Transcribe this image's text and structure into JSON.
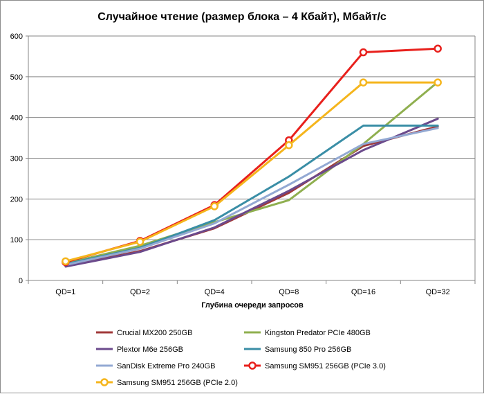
{
  "chart_data": {
    "type": "line",
    "title": "Случайное чтение (размер блока – 4 Кбайт), Мбайт/с",
    "xlabel": "Глубина очереди запросов",
    "ylabel": "",
    "categories": [
      "QD=1",
      "QD=2",
      "QD=4",
      "QD=8",
      "QD=16",
      "QD=32"
    ],
    "ylim": [
      0,
      600
    ],
    "yticks": [
      0,
      100,
      200,
      300,
      400,
      500,
      600
    ],
    "grid": true,
    "legend_position": "bottom",
    "series": [
      {
        "name": "Crucial MX200 250GB",
        "color": "#a0393a",
        "marker": false,
        "values": [
          35,
          72,
          128,
          215,
          330,
          378
        ]
      },
      {
        "name": "Kingston Predator PCIe 480GB",
        "color": "#8faf4f",
        "marker": false,
        "values": [
          42,
          85,
          143,
          197,
          335,
          487
        ]
      },
      {
        "name": "Plextor M6e 256GB",
        "color": "#6b4a8c",
        "marker": false,
        "values": [
          34,
          70,
          130,
          220,
          320,
          397
        ]
      },
      {
        "name": "Samsung 850 Pro 256GB",
        "color": "#3a8ea6",
        "marker": false,
        "values": [
          40,
          80,
          148,
          255,
          380,
          380
        ]
      },
      {
        "name": "SanDisk Extreme Pro 240GB",
        "color": "#93a9d3",
        "marker": false,
        "values": [
          38,
          78,
          140,
          235,
          335,
          374
        ]
      },
      {
        "name": "Samsung SM951 256GB (PCIe 3.0)",
        "color": "#e8201c",
        "marker": true,
        "values": [
          45,
          97,
          185,
          344,
          560,
          569
        ]
      },
      {
        "name": "Samsung SM951 256GB (PCIe 2.0)",
        "color": "#f5b51c",
        "marker": true,
        "values": [
          47,
          95,
          182,
          332,
          486,
          486
        ]
      }
    ]
  }
}
